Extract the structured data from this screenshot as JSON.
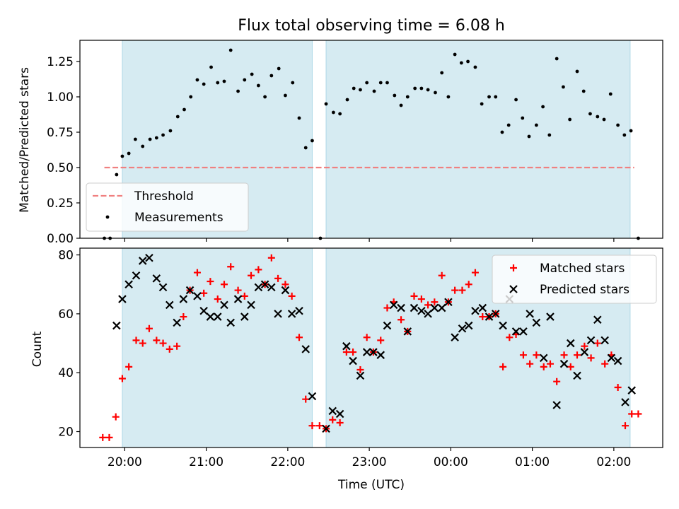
{
  "colors": {
    "shade": "#add8e6",
    "threshold": "#f08080",
    "matched": "#ff0000",
    "predicted": "#000000",
    "measurement": "#000000"
  },
  "chart_data": [
    {
      "type": "scatter",
      "title": "Flux total observing time = 6.08 h",
      "xlabel": "",
      "ylabel": "Matched/Predicted stars",
      "x_unit": "decimal hours UTC on the first night (values above 24 are after midnight)",
      "xlim": [
        19.45,
        26.6
      ],
      "ylim": [
        0,
        1.4
      ],
      "y_ticks": [
        0.0,
        0.25,
        0.5,
        0.75,
        1.0,
        1.25
      ],
      "y_tick_labels": [
        "0.00",
        "0.25",
        "0.50",
        "0.75",
        "1.00",
        "1.25"
      ],
      "shaded_spans": [
        [
          19.97,
          22.3
        ],
        [
          22.47,
          26.2
        ]
      ],
      "legend": {
        "placement": "lower-left",
        "entries": [
          "Threshold",
          "Measurements"
        ]
      },
      "series": [
        {
          "name": "Threshold",
          "kind": "dashed-line",
          "x": [
            19.75,
            26.25
          ],
          "y": [
            0.5,
            0.5
          ]
        },
        {
          "name": "Measurements",
          "kind": "dots",
          "points": [
            [
              19.75,
              0.0
            ],
            [
              19.82,
              0.0
            ],
            [
              19.9,
              0.45
            ],
            [
              19.97,
              0.58
            ],
            [
              20.05,
              0.6
            ],
            [
              20.13,
              0.7
            ],
            [
              20.22,
              0.65
            ],
            [
              20.31,
              0.7
            ],
            [
              20.39,
              0.71
            ],
            [
              20.47,
              0.73
            ],
            [
              20.56,
              0.76
            ],
            [
              20.65,
              0.86
            ],
            [
              20.73,
              0.91
            ],
            [
              20.81,
              1.0
            ],
            [
              20.89,
              1.12
            ],
            [
              20.97,
              1.09
            ],
            [
              21.06,
              1.21
            ],
            [
              21.14,
              1.1
            ],
            [
              21.22,
              1.11
            ],
            [
              21.3,
              1.33
            ],
            [
              21.39,
              1.04
            ],
            [
              21.47,
              1.12
            ],
            [
              21.56,
              1.16
            ],
            [
              21.64,
              1.08
            ],
            [
              21.72,
              1.0
            ],
            [
              21.8,
              1.15
            ],
            [
              21.89,
              1.2
            ],
            [
              21.97,
              1.01
            ],
            [
              22.06,
              1.1
            ],
            [
              22.14,
              0.85
            ],
            [
              22.22,
              0.64
            ],
            [
              22.3,
              0.69
            ],
            [
              22.4,
              0.0
            ],
            [
              22.47,
              0.95
            ],
            [
              22.56,
              0.89
            ],
            [
              22.64,
              0.88
            ],
            [
              22.73,
              0.98
            ],
            [
              22.81,
              1.06
            ],
            [
              22.89,
              1.05
            ],
            [
              22.97,
              1.1
            ],
            [
              23.06,
              1.04
            ],
            [
              23.14,
              1.1
            ],
            [
              23.22,
              1.1
            ],
            [
              23.31,
              1.01
            ],
            [
              23.39,
              0.94
            ],
            [
              23.47,
              1.0
            ],
            [
              23.56,
              1.06
            ],
            [
              23.64,
              1.06
            ],
            [
              23.72,
              1.05
            ],
            [
              23.81,
              1.03
            ],
            [
              23.89,
              1.17
            ],
            [
              23.97,
              1.0
            ],
            [
              24.05,
              1.3
            ],
            [
              24.13,
              1.24
            ],
            [
              24.21,
              1.25
            ],
            [
              24.3,
              1.21
            ],
            [
              24.38,
              0.95
            ],
            [
              24.47,
              1.0
            ],
            [
              24.55,
              1.0
            ],
            [
              24.63,
              0.75
            ],
            [
              24.71,
              0.8
            ],
            [
              24.8,
              0.98
            ],
            [
              24.88,
              0.85
            ],
            [
              24.96,
              0.72
            ],
            [
              25.05,
              0.8
            ],
            [
              25.13,
              0.93
            ],
            [
              25.21,
              0.73
            ],
            [
              25.3,
              1.27
            ],
            [
              25.38,
              1.07
            ],
            [
              25.46,
              0.84
            ],
            [
              25.55,
              1.18
            ],
            [
              25.63,
              1.04
            ],
            [
              25.71,
              0.88
            ],
            [
              25.8,
              0.86
            ],
            [
              25.88,
              0.84
            ],
            [
              25.96,
              1.02
            ],
            [
              26.05,
              0.8
            ],
            [
              26.13,
              0.73
            ],
            [
              26.21,
              0.76
            ],
            [
              26.3,
              0.0
            ]
          ]
        }
      ]
    },
    {
      "type": "scatter",
      "title": "",
      "xlabel": "Time (UTC)",
      "ylabel": "Count",
      "x_unit": "decimal hours UTC on the first night (values above 24 are after midnight)",
      "xlim": [
        19.45,
        26.6
      ],
      "ylim": [
        14.6,
        82.3
      ],
      "y_ticks": [
        20,
        40,
        60,
        80
      ],
      "y_tick_labels": [
        "20",
        "40",
        "60",
        "80"
      ],
      "x_ticks": [
        20,
        21,
        22,
        23,
        24,
        25,
        26
      ],
      "x_tick_labels": [
        "20:00",
        "21:00",
        "22:00",
        "23:00",
        "00:00",
        "01:00",
        "02:00"
      ],
      "shaded_spans": [
        [
          19.97,
          22.3
        ],
        [
          22.47,
          26.2
        ]
      ],
      "legend": {
        "placement": "upper-right",
        "entries": [
          "Matched stars",
          "Predicted stars"
        ]
      },
      "series": [
        {
          "name": "Matched stars",
          "marker": "plus",
          "points": [
            [
              19.73,
              18
            ],
            [
              19.81,
              18
            ],
            [
              19.89,
              25
            ],
            [
              19.97,
              38
            ],
            [
              20.05,
              42
            ],
            [
              20.14,
              51
            ],
            [
              20.22,
              50
            ],
            [
              20.3,
              55
            ],
            [
              20.39,
              51
            ],
            [
              20.47,
              50
            ],
            [
              20.55,
              48
            ],
            [
              20.64,
              49
            ],
            [
              20.72,
              59
            ],
            [
              20.8,
              68
            ],
            [
              20.89,
              74
            ],
            [
              20.97,
              67
            ],
            [
              21.05,
              71
            ],
            [
              21.14,
              65
            ],
            [
              21.22,
              70
            ],
            [
              21.3,
              76
            ],
            [
              21.39,
              68
            ],
            [
              21.47,
              66
            ],
            [
              21.55,
              73
            ],
            [
              21.64,
              75
            ],
            [
              21.72,
              70
            ],
            [
              21.8,
              79
            ],
            [
              21.88,
              72
            ],
            [
              21.97,
              70
            ],
            [
              22.05,
              66
            ],
            [
              22.14,
              52
            ],
            [
              22.22,
              31
            ],
            [
              22.3,
              22
            ],
            [
              22.39,
              22
            ],
            [
              22.47,
              21
            ],
            [
              22.55,
              24
            ],
            [
              22.64,
              23
            ],
            [
              22.72,
              47
            ],
            [
              22.8,
              47
            ],
            [
              22.89,
              41
            ],
            [
              22.97,
              52
            ],
            [
              23.05,
              47
            ],
            [
              23.14,
              51
            ],
            [
              23.22,
              62
            ],
            [
              23.3,
              64
            ],
            [
              23.39,
              58
            ],
            [
              23.47,
              54
            ],
            [
              23.55,
              66
            ],
            [
              23.64,
              65
            ],
            [
              23.72,
              63
            ],
            [
              23.8,
              64
            ],
            [
              23.89,
              73
            ],
            [
              23.97,
              64
            ],
            [
              24.05,
              68
            ],
            [
              24.14,
              68
            ],
            [
              24.22,
              70
            ],
            [
              24.3,
              74
            ],
            [
              24.39,
              59
            ],
            [
              24.47,
              59
            ],
            [
              24.55,
              60
            ],
            [
              24.64,
              42
            ],
            [
              24.72,
              52
            ],
            [
              24.8,
              53
            ],
            [
              24.89,
              46
            ],
            [
              24.97,
              43
            ],
            [
              25.05,
              46
            ],
            [
              25.14,
              42
            ],
            [
              25.22,
              43
            ],
            [
              25.3,
              37
            ],
            [
              25.39,
              46
            ],
            [
              25.47,
              42
            ],
            [
              25.55,
              46
            ],
            [
              25.64,
              49
            ],
            [
              25.72,
              45
            ],
            [
              25.8,
              50
            ],
            [
              25.89,
              43
            ],
            [
              25.97,
              46
            ],
            [
              26.05,
              35
            ],
            [
              26.14,
              22
            ],
            [
              26.22,
              26
            ],
            [
              26.3,
              26
            ]
          ]
        },
        {
          "name": "Predicted stars",
          "marker": "x",
          "points": [
            [
              19.9,
              56
            ],
            [
              19.97,
              65
            ],
            [
              20.05,
              70
            ],
            [
              20.14,
              73
            ],
            [
              20.22,
              78
            ],
            [
              20.3,
              79
            ],
            [
              20.39,
              72
            ],
            [
              20.47,
              69
            ],
            [
              20.55,
              63
            ],
            [
              20.64,
              57
            ],
            [
              20.72,
              65
            ],
            [
              20.8,
              68
            ],
            [
              20.89,
              66
            ],
            [
              20.97,
              61
            ],
            [
              21.05,
              59
            ],
            [
              21.14,
              59
            ],
            [
              21.22,
              63
            ],
            [
              21.3,
              57
            ],
            [
              21.39,
              65
            ],
            [
              21.47,
              59
            ],
            [
              21.55,
              63
            ],
            [
              21.64,
              69
            ],
            [
              21.72,
              70
            ],
            [
              21.8,
              69
            ],
            [
              21.88,
              60
            ],
            [
              21.97,
              68
            ],
            [
              22.05,
              60
            ],
            [
              22.14,
              61
            ],
            [
              22.22,
              48
            ],
            [
              22.3,
              32
            ],
            [
              22.47,
              21
            ],
            [
              22.55,
              27
            ],
            [
              22.64,
              26
            ],
            [
              22.72,
              49
            ],
            [
              22.8,
              44
            ],
            [
              22.89,
              39
            ],
            [
              22.97,
              47
            ],
            [
              23.05,
              47
            ],
            [
              23.14,
              46
            ],
            [
              23.22,
              56
            ],
            [
              23.3,
              63
            ],
            [
              23.39,
              62
            ],
            [
              23.47,
              54
            ],
            [
              23.55,
              62
            ],
            [
              23.64,
              61
            ],
            [
              23.72,
              60
            ],
            [
              23.8,
              62
            ],
            [
              23.89,
              62
            ],
            [
              23.97,
              64
            ],
            [
              24.05,
              52
            ],
            [
              24.14,
              55
            ],
            [
              24.22,
              56
            ],
            [
              24.3,
              61
            ],
            [
              24.39,
              62
            ],
            [
              24.47,
              59
            ],
            [
              24.55,
              60
            ],
            [
              24.64,
              56
            ],
            [
              24.72,
              65
            ],
            [
              24.8,
              54
            ],
            [
              24.89,
              54
            ],
            [
              24.97,
              60
            ],
            [
              25.05,
              57
            ],
            [
              25.14,
              45
            ],
            [
              25.22,
              59
            ],
            [
              25.3,
              29
            ],
            [
              25.39,
              43
            ],
            [
              25.47,
              50
            ],
            [
              25.55,
              39
            ],
            [
              25.64,
              47
            ],
            [
              25.72,
              51
            ],
            [
              25.8,
              58
            ],
            [
              25.89,
              51
            ],
            [
              25.97,
              45
            ],
            [
              26.05,
              44
            ],
            [
              26.14,
              30
            ],
            [
              26.22,
              34
            ]
          ]
        }
      ]
    }
  ]
}
